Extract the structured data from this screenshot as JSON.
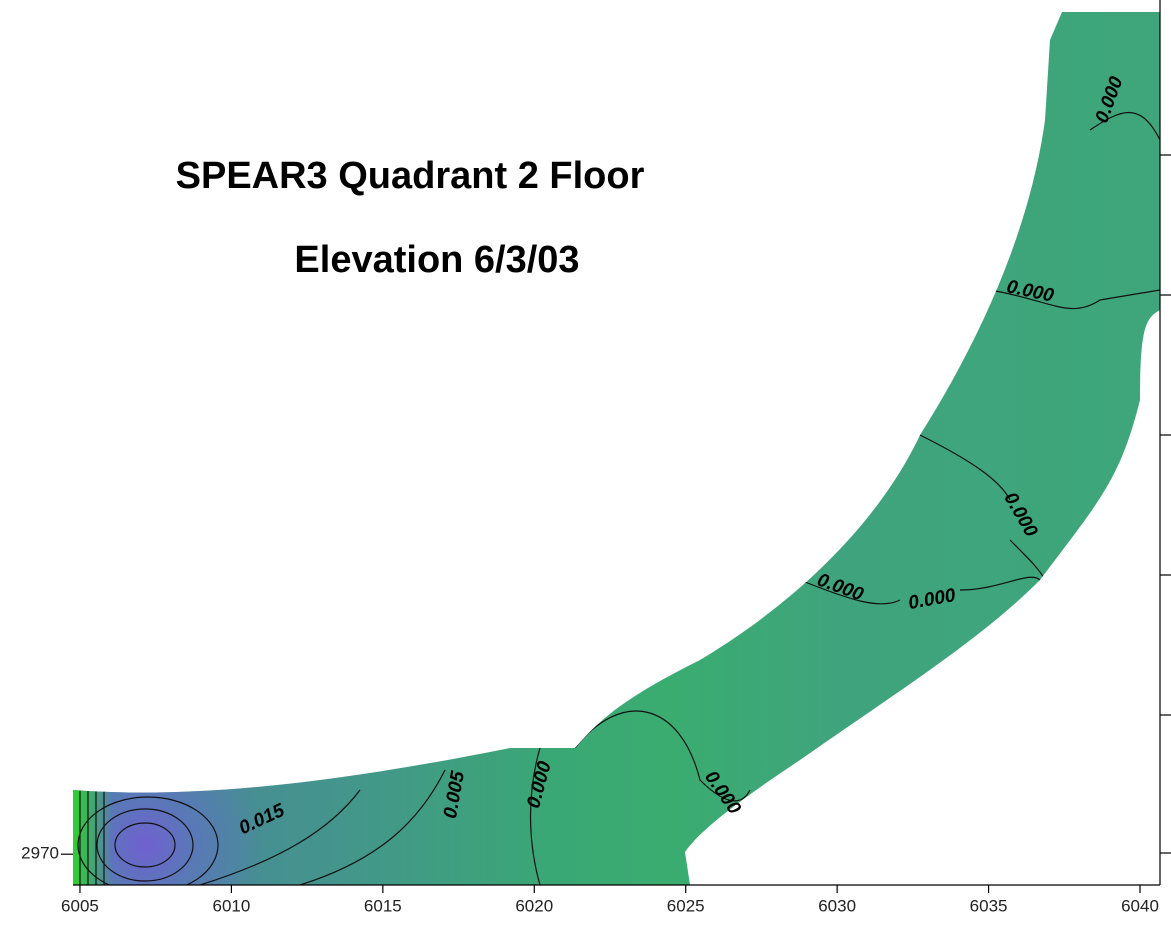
{
  "chart_data": {
    "type": "contour",
    "title": [
      "SPEAR3 Quadrant 2 Floor",
      "Elevation 6/3/03"
    ],
    "xlim": [
      6004.77,
      6040.66
    ],
    "xticks": [
      6005,
      6010,
      6015,
      6020,
      6025,
      6030,
      6035,
      6040
    ],
    "ylim": [
      2968.9,
      3000.5
    ],
    "yticks": [
      2970
    ],
    "contours": {
      "values": [
        0,
        0,
        0,
        0,
        0,
        0,
        0,
        0.015,
        0.005
      ],
      "value_labels": [
        "0.000",
        "0.000",
        "0.000",
        "0.000",
        "0.000",
        "0.000",
        "0.000",
        "0.015",
        "0.005"
      ]
    }
  }
}
